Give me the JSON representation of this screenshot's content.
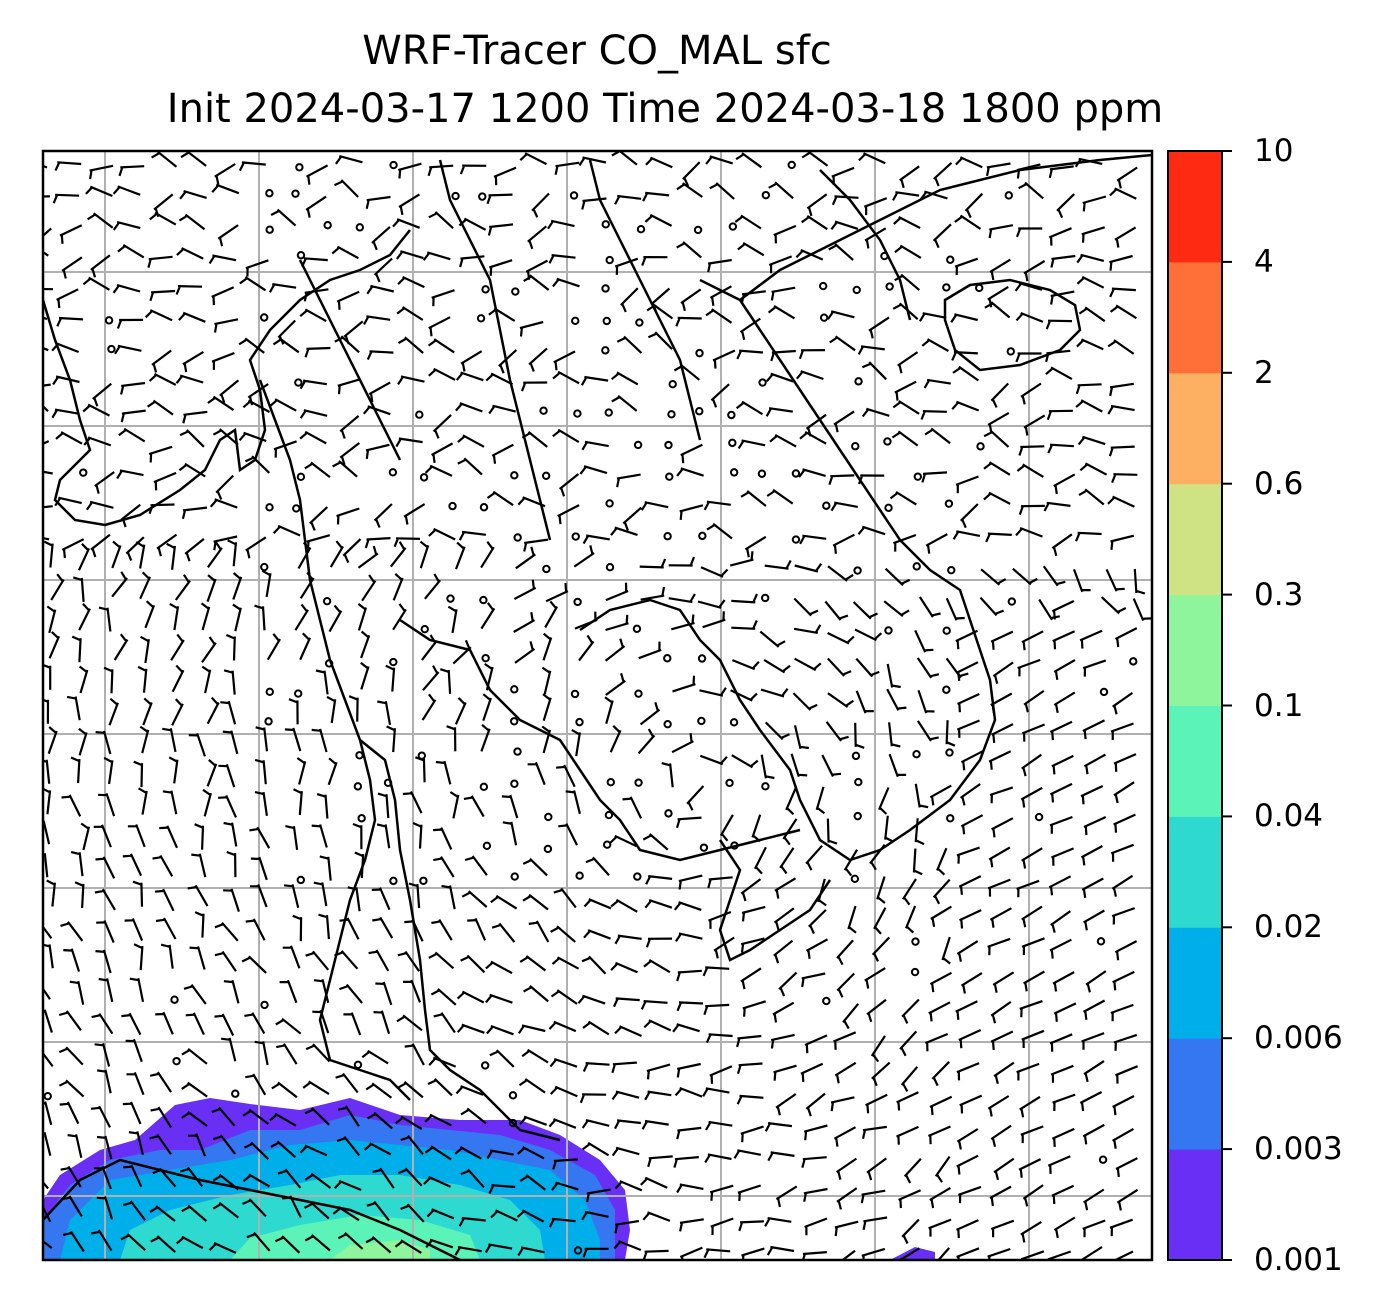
{
  "title": {
    "line1": "WRF-Tracer CO_MAL sfc",
    "line2": "Init 2024-03-17 1200 Time 2024-03-18 1800 ppm"
  },
  "colorbar": {
    "levels": [
      "0.001",
      "0.003",
      "0.006",
      "0.02",
      "0.04",
      "0.1",
      "0.3",
      "0.6",
      "2",
      "4",
      "10"
    ],
    "colors": [
      "#6a2ff5",
      "#3477f0",
      "#00aee9",
      "#2ed9d0",
      "#5cf3b8",
      "#8ef59c",
      "#cfe284",
      "#fdb062",
      "#ff7038",
      "#ff2a12"
    ]
  },
  "map": {
    "coastline_color": "#000000",
    "grid_color": "#b0b0b0",
    "wind_barb_color": "#000000",
    "tracer_field_present_region": "southwest"
  }
}
